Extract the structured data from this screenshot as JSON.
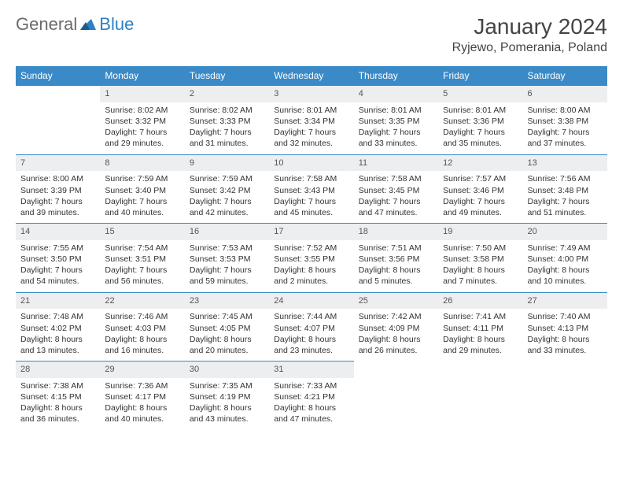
{
  "logo": {
    "text1": "General",
    "text2": "Blue"
  },
  "title": "January 2024",
  "location": "Ryjewo, Pomerania, Poland",
  "colors": {
    "header_bg": "#3a8ac7",
    "header_text": "#ffffff",
    "daynum_bg": "#eceef0",
    "body_text": "#333333",
    "logo_gray": "#6b6b6b",
    "logo_blue": "#2f7fc2",
    "row_border": "#3a8ac7"
  },
  "typography": {
    "title_fontsize": 28,
    "location_fontsize": 16,
    "weekday_fontsize": 12,
    "cell_fontsize": 10.5
  },
  "weekdays": [
    "Sunday",
    "Monday",
    "Tuesday",
    "Wednesday",
    "Thursday",
    "Friday",
    "Saturday"
  ],
  "weeks": [
    [
      null,
      {
        "d": "1",
        "sr": "8:02 AM",
        "ss": "3:32 PM",
        "dl": "7 hours and 29 minutes."
      },
      {
        "d": "2",
        "sr": "8:02 AM",
        "ss": "3:33 PM",
        "dl": "7 hours and 31 minutes."
      },
      {
        "d": "3",
        "sr": "8:01 AM",
        "ss": "3:34 PM",
        "dl": "7 hours and 32 minutes."
      },
      {
        "d": "4",
        "sr": "8:01 AM",
        "ss": "3:35 PM",
        "dl": "7 hours and 33 minutes."
      },
      {
        "d": "5",
        "sr": "8:01 AM",
        "ss": "3:36 PM",
        "dl": "7 hours and 35 minutes."
      },
      {
        "d": "6",
        "sr": "8:00 AM",
        "ss": "3:38 PM",
        "dl": "7 hours and 37 minutes."
      }
    ],
    [
      {
        "d": "7",
        "sr": "8:00 AM",
        "ss": "3:39 PM",
        "dl": "7 hours and 39 minutes."
      },
      {
        "d": "8",
        "sr": "7:59 AM",
        "ss": "3:40 PM",
        "dl": "7 hours and 40 minutes."
      },
      {
        "d": "9",
        "sr": "7:59 AM",
        "ss": "3:42 PM",
        "dl": "7 hours and 42 minutes."
      },
      {
        "d": "10",
        "sr": "7:58 AM",
        "ss": "3:43 PM",
        "dl": "7 hours and 45 minutes."
      },
      {
        "d": "11",
        "sr": "7:58 AM",
        "ss": "3:45 PM",
        "dl": "7 hours and 47 minutes."
      },
      {
        "d": "12",
        "sr": "7:57 AM",
        "ss": "3:46 PM",
        "dl": "7 hours and 49 minutes."
      },
      {
        "d": "13",
        "sr": "7:56 AM",
        "ss": "3:48 PM",
        "dl": "7 hours and 51 minutes."
      }
    ],
    [
      {
        "d": "14",
        "sr": "7:55 AM",
        "ss": "3:50 PM",
        "dl": "7 hours and 54 minutes."
      },
      {
        "d": "15",
        "sr": "7:54 AM",
        "ss": "3:51 PM",
        "dl": "7 hours and 56 minutes."
      },
      {
        "d": "16",
        "sr": "7:53 AM",
        "ss": "3:53 PM",
        "dl": "7 hours and 59 minutes."
      },
      {
        "d": "17",
        "sr": "7:52 AM",
        "ss": "3:55 PM",
        "dl": "8 hours and 2 minutes."
      },
      {
        "d": "18",
        "sr": "7:51 AM",
        "ss": "3:56 PM",
        "dl": "8 hours and 5 minutes."
      },
      {
        "d": "19",
        "sr": "7:50 AM",
        "ss": "3:58 PM",
        "dl": "8 hours and 7 minutes."
      },
      {
        "d": "20",
        "sr": "7:49 AM",
        "ss": "4:00 PM",
        "dl": "8 hours and 10 minutes."
      }
    ],
    [
      {
        "d": "21",
        "sr": "7:48 AM",
        "ss": "4:02 PM",
        "dl": "8 hours and 13 minutes."
      },
      {
        "d": "22",
        "sr": "7:46 AM",
        "ss": "4:03 PM",
        "dl": "8 hours and 16 minutes."
      },
      {
        "d": "23",
        "sr": "7:45 AM",
        "ss": "4:05 PM",
        "dl": "8 hours and 20 minutes."
      },
      {
        "d": "24",
        "sr": "7:44 AM",
        "ss": "4:07 PM",
        "dl": "8 hours and 23 minutes."
      },
      {
        "d": "25",
        "sr": "7:42 AM",
        "ss": "4:09 PM",
        "dl": "8 hours and 26 minutes."
      },
      {
        "d": "26",
        "sr": "7:41 AM",
        "ss": "4:11 PM",
        "dl": "8 hours and 29 minutes."
      },
      {
        "d": "27",
        "sr": "7:40 AM",
        "ss": "4:13 PM",
        "dl": "8 hours and 33 minutes."
      }
    ],
    [
      {
        "d": "28",
        "sr": "7:38 AM",
        "ss": "4:15 PM",
        "dl": "8 hours and 36 minutes."
      },
      {
        "d": "29",
        "sr": "7:36 AM",
        "ss": "4:17 PM",
        "dl": "8 hours and 40 minutes."
      },
      {
        "d": "30",
        "sr": "7:35 AM",
        "ss": "4:19 PM",
        "dl": "8 hours and 43 minutes."
      },
      {
        "d": "31",
        "sr": "7:33 AM",
        "ss": "4:21 PM",
        "dl": "8 hours and 47 minutes."
      },
      null,
      null,
      null
    ]
  ],
  "labels": {
    "sunrise": "Sunrise:",
    "sunset": "Sunset:",
    "daylight": "Daylight:"
  }
}
